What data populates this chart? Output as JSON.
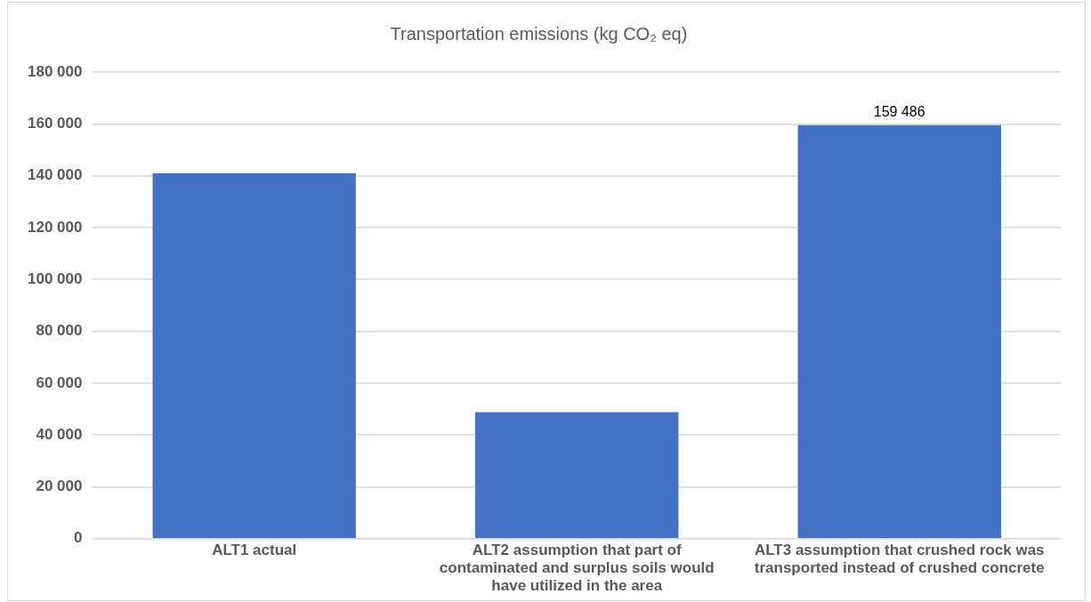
{
  "chart_data": {
    "type": "bar",
    "title": "Transportation emissions (kg CO₂ eq)",
    "categories": [
      "ALT1 actual",
      "ALT2 assumption that part of contaminated and surplus soils would have utilized in the area",
      "ALT3 assumption that crushed rock was transported instead of crushed concrete"
    ],
    "values": [
      141000,
      48800,
      159486
    ],
    "color": "#4472c4",
    "value_labels": [
      null,
      null,
      "159 486"
    ],
    "ylim": [
      0,
      180000
    ],
    "yticks": [
      {
        "value": 0,
        "label": "0"
      },
      {
        "value": 20000,
        "label": "20 000"
      },
      {
        "value": 40000,
        "label": "40 000"
      },
      {
        "value": 60000,
        "label": "60 000"
      },
      {
        "value": 80000,
        "label": "80 000"
      },
      {
        "value": 100000,
        "label": "100 000"
      },
      {
        "value": 120000,
        "label": "120 000"
      },
      {
        "value": 140000,
        "label": "140 000"
      },
      {
        "value": 160000,
        "label": "160 000"
      },
      {
        "value": 180000,
        "label": "180 000"
      }
    ],
    "grid": "y",
    "legend": false
  }
}
